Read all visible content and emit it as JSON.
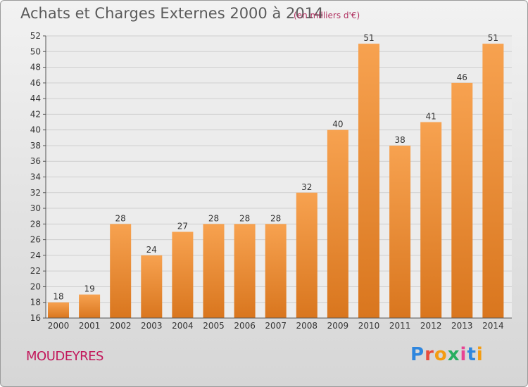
{
  "header": {
    "title": "Achats et Charges Externes 2000 à 2014",
    "subtitle": "(en milliers d'€)"
  },
  "footer": {
    "commune": "MOUDEYRES",
    "logo_text": "Proxiti"
  },
  "colors": {
    "bar_top": "#f7a250",
    "bar_bottom": "#d9761e",
    "grid": "#cfcfcf",
    "commune": "#c2185b",
    "logo_letters": [
      "#2e86de",
      "#e74c3c",
      "#f39c12",
      "#27ae60",
      "#e84393",
      "#2e86de",
      "#f39c12"
    ]
  },
  "chart_data": {
    "type": "bar",
    "title": "Achats et Charges Externes 2000 à 2014",
    "subtitle": "(en milliers d'€)",
    "categories": [
      "2000",
      "2001",
      "2002",
      "2003",
      "2004",
      "2005",
      "2006",
      "2007",
      "2008",
      "2009",
      "2010",
      "2011",
      "2012",
      "2013",
      "2014"
    ],
    "values": [
      18,
      19,
      28,
      24,
      27,
      28,
      28,
      28,
      32,
      40,
      51,
      38,
      41,
      46,
      51
    ],
    "ylim": [
      16,
      52
    ],
    "yticks": [
      16,
      18,
      20,
      22,
      24,
      26,
      28,
      30,
      32,
      34,
      36,
      38,
      40,
      42,
      44,
      46,
      48,
      50,
      52
    ],
    "grid": true,
    "xlabel": "",
    "ylabel": ""
  }
}
